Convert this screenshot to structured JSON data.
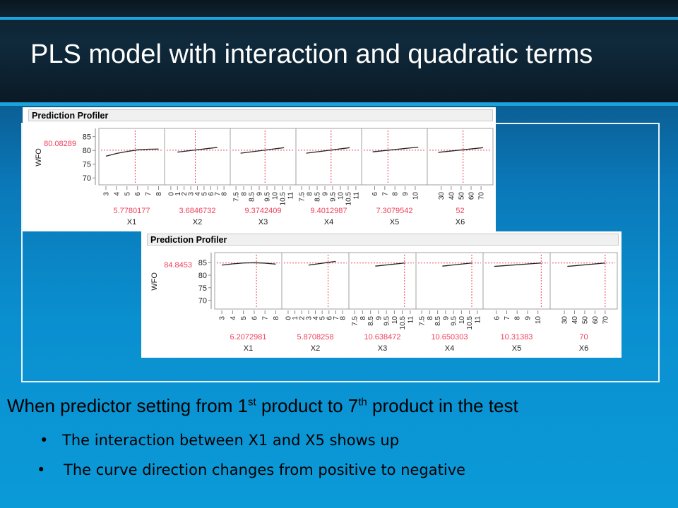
{
  "slide": {
    "title": "PLS model with interaction and quadratic terms",
    "bottom": {
      "pre": "When predictor setting from 1",
      "sup1": "st",
      "mid": " product to 7",
      "sup2": "th",
      "post": " product in the test"
    },
    "bullets": [
      "The interaction between X1 and X5 shows up",
      "The curve direction changes from positive to negative"
    ],
    "bullet_glyph": "•"
  },
  "colors": {
    "red": "#f0405a",
    "curve": "#222222",
    "grid": "#a0a0a0"
  },
  "chart_data": [
    {
      "type": "line",
      "title": "Prediction Profiler",
      "ylabel": "WFO",
      "response_value": "80.08289",
      "response": 80.08289,
      "ylim": [
        67.5,
        88
      ],
      "yticks": [
        70,
        75,
        80,
        85
      ],
      "factors": [
        {
          "name": "X1",
          "value_label": "5.7780177",
          "value": 5.7780177,
          "xlim": [
            2.8,
            8.1
          ],
          "ticks": [
            "3",
            "4",
            "5",
            "6",
            "7",
            "8"
          ],
          "curve": [
            [
              3,
              77.9
            ],
            [
              4,
              78.9
            ],
            [
              5,
              79.6
            ],
            [
              6,
              80.2
            ],
            [
              7,
              80.45
            ],
            [
              8,
              80.5
            ]
          ]
        },
        {
          "name": "X2",
          "value_label": "3.6846732",
          "value": 3.6846732,
          "xlim": [
            -0.2,
            8.2
          ],
          "ticks": [
            "0",
            "1",
            "2",
            "3",
            "4",
            "5",
            "6",
            "7",
            "8"
          ],
          "curve": [
            [
              1,
              79.4
            ],
            [
              7,
              81.1
            ]
          ]
        },
        {
          "name": "X3",
          "value_label": "9.3742409",
          "value": 9.3742409,
          "xlim": [
            7.45,
            11.05
          ],
          "ticks": [
            "7.5",
            "8",
            "8.5",
            "9",
            "9.5",
            "10",
            "10.5",
            "11"
          ],
          "curve": [
            [
              7.8,
              79.0
            ],
            [
              10.6,
              81.0
            ]
          ]
        },
        {
          "name": "X4",
          "value_label": "9.4012987",
          "value": 9.4012987,
          "xlim": [
            7.45,
            11.05
          ],
          "ticks": [
            "7.5",
            "8",
            "8.5",
            "9",
            "9.5",
            "10",
            "10.5",
            "11"
          ],
          "curve": [
            [
              7.8,
              79.0
            ],
            [
              10.6,
              81.0
            ]
          ]
        },
        {
          "name": "X5",
          "value_label": "7.3079542",
          "value": 7.3079542,
          "xlim": [
            5.2,
            10.7
          ],
          "ticks": [
            "6",
            "7",
            "8",
            "9",
            "10"
          ],
          "curve": [
            [
              5.8,
              79.5
            ],
            [
              10.3,
              81.2
            ]
          ]
        },
        {
          "name": "X6",
          "value_label": "52",
          "value": 52,
          "xlim": [
            21,
            77
          ],
          "ticks": [
            "30",
            "40",
            "50",
            "60",
            "70"
          ],
          "curve": [
            [
              27,
              79.3
            ],
            [
              72,
              81.0
            ]
          ]
        }
      ]
    },
    {
      "type": "line",
      "title": "Prediction Profiler",
      "ylabel": "WFO",
      "response_value": "84.8453",
      "response": 84.8453,
      "ylim": [
        66.5,
        89
      ],
      "yticks": [
        70,
        75,
        80,
        85
      ],
      "factors": [
        {
          "name": "X1",
          "value_label": "6.2072981",
          "value": 6.2072981,
          "xlim": [
            2.8,
            8.1
          ],
          "ticks": [
            "3",
            "4",
            "5",
            "6",
            "7",
            "8"
          ],
          "curve": [
            [
              3,
              84.0
            ],
            [
              4,
              84.5
            ],
            [
              5,
              84.85
            ],
            [
              6,
              84.95
            ],
            [
              7,
              84.8
            ],
            [
              8,
              84.4
            ]
          ]
        },
        {
          "name": "X2",
          "value_label": "5.8708258",
          "value": 5.8708258,
          "xlim": [
            -0.2,
            8.2
          ],
          "ticks": [
            "0",
            "1",
            "2",
            "3",
            "4",
            "5",
            "6",
            "7",
            "8"
          ],
          "curve": [
            [
              3,
              84.0
            ],
            [
              7,
              85.5
            ]
          ]
        },
        {
          "name": "X3",
          "value_label": "10.638472",
          "value": 10.638472,
          "xlim": [
            7.45,
            11.05
          ],
          "ticks": [
            "7.5",
            "8",
            "8.5",
            "9",
            "9.5",
            "10",
            "10.5",
            "11"
          ],
          "curve": [
            [
              8.8,
              83.6
            ],
            [
              10.64,
              84.85
            ]
          ]
        },
        {
          "name": "X4",
          "value_label": "10.650303",
          "value": 10.650303,
          "xlim": [
            7.45,
            11.05
          ],
          "ticks": [
            "7.5",
            "8",
            "8.5",
            "9",
            "9.5",
            "10",
            "10.5",
            "11"
          ],
          "curve": [
            [
              8.8,
              83.6
            ],
            [
              10.65,
              84.85
            ]
          ]
        },
        {
          "name": "X5",
          "value_label": "10.31383",
          "value": 10.31383,
          "xlim": [
            5.2,
            10.7
          ],
          "ticks": [
            "6",
            "7",
            "8",
            "9",
            "10"
          ],
          "curve": [
            [
              5.8,
              83.5
            ],
            [
              10.31,
              84.85
            ]
          ]
        },
        {
          "name": "X6",
          "value_label": "70",
          "value": 70,
          "xlim": [
            21,
            77
          ],
          "ticks": [
            "30",
            "40",
            "50",
            "60",
            "70"
          ],
          "curve": [
            [
              33,
              83.5
            ],
            [
              70,
              84.85
            ]
          ]
        }
      ]
    }
  ]
}
